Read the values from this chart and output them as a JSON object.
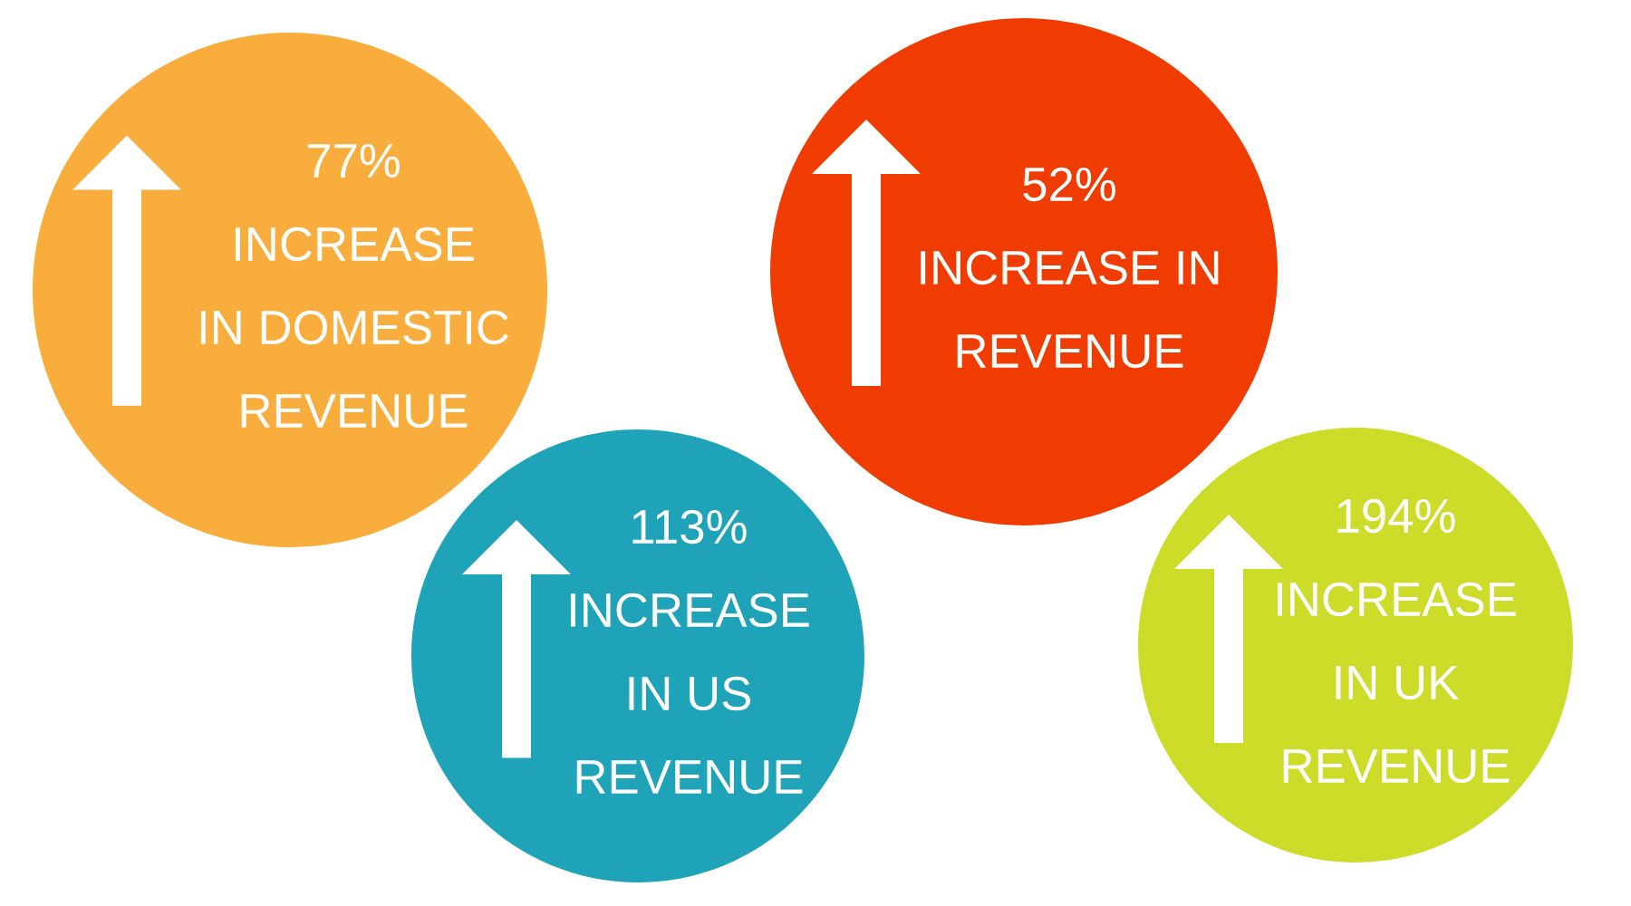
{
  "chart_data": {
    "type": "other",
    "categories": [
      "INCREASE\nIN DOMESTIC\nREVENUE",
      "INCREASE IN\nREVENUE",
      "INCREASE\nIN US\nREVENUE",
      "INCREASE\nIN UK\nREVENUE"
    ],
    "values": [
      77,
      52,
      113,
      194
    ],
    "value_labels": [
      "77%",
      "52%",
      "113%",
      "194%"
    ],
    "colors": [
      "#f9ad3c",
      "#f03c00",
      "#1fa3b8",
      "#cddc29"
    ]
  }
}
